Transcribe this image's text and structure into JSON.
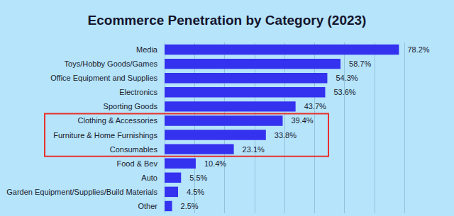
{
  "chart_data": {
    "type": "bar",
    "title": "Ecommerce Penetration by Category (2023)",
    "orientation": "horizontal",
    "categories": [
      "Media",
      "Toys/Hobby Goods/Games",
      "Office Equipment and Supplies",
      "Electronics",
      "Sporting Goods",
      "Clothing & Accessories",
      "Furniture & Home Furnishings",
      "Consumables",
      "Food & Bev",
      "Auto",
      "Garden Equipment/Supplies/Build Materials",
      "Other"
    ],
    "values": [
      78.2,
      58.7,
      54.3,
      53.6,
      43.7,
      39.4,
      33.8,
      23.1,
      10.4,
      5.5,
      4.5,
      2.5
    ],
    "value_labels": [
      "78.2%",
      "58.7%",
      "54.3%",
      "53.6%",
      "43.7%",
      "39.4%",
      "33.8%",
      "23.1%",
      "10.4%",
      "5.5%",
      "4.5%",
      "2.5%"
    ],
    "data_labels": true,
    "color": "#3431ef",
    "xlim": [
      0,
      80
    ],
    "xticks": [
      0,
      10,
      20,
      30,
      40,
      50,
      60,
      70,
      80
    ],
    "grid": true,
    "tick_labels": "y"
  }
}
